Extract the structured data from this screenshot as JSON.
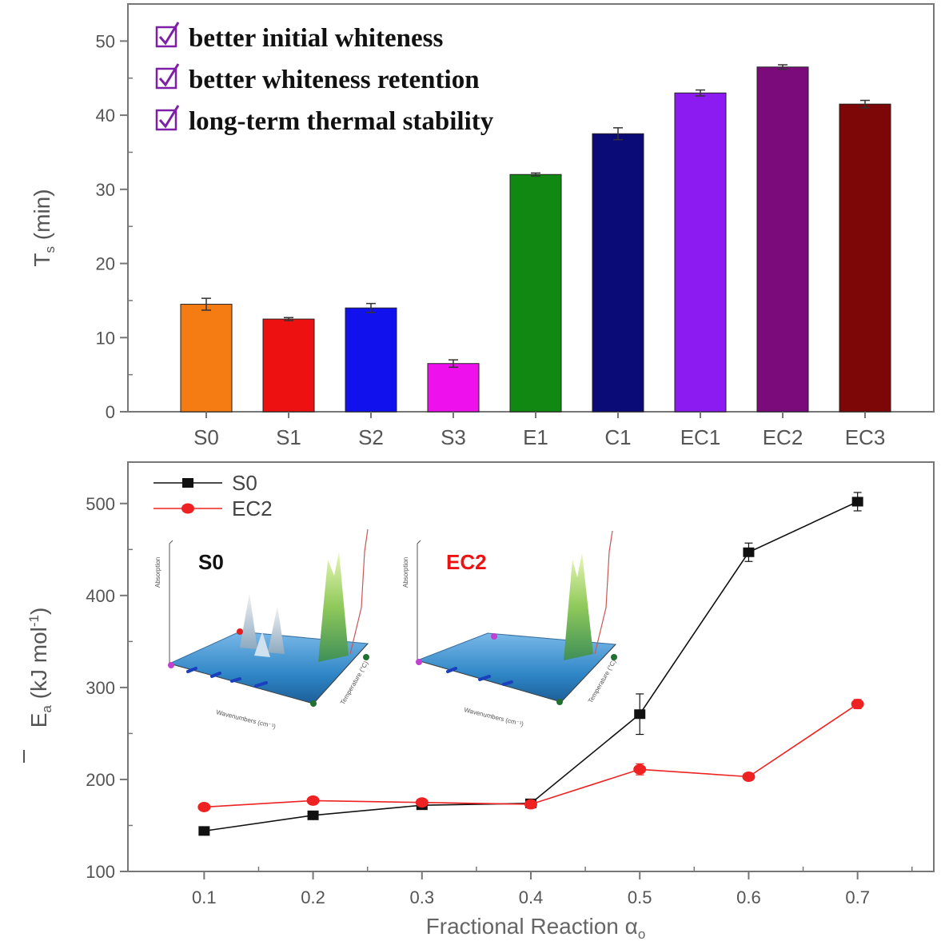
{
  "chart_data": [
    {
      "type": "bar",
      "title": "",
      "xlabel": "",
      "ylabel": "T",
      "ylabel_sub": "s",
      "ylabel_unit": " (min)",
      "ylim": [
        0,
        55
      ],
      "yticks": [
        0,
        10,
        20,
        30,
        40,
        50
      ],
      "categories": [
        "S0",
        "S1",
        "S2",
        "S3",
        "E1",
        "C1",
        "EC1",
        "EC2",
        "EC3"
      ],
      "values": [
        14.5,
        12.5,
        14.0,
        6.5,
        32.0,
        37.5,
        43.0,
        46.5,
        41.5
      ],
      "errors": [
        0.8,
        0.2,
        0.6,
        0.5,
        0.2,
        0.8,
        0.4,
        0.3,
        0.5
      ],
      "colors": [
        "#f57c12",
        "#ee1111",
        "#1111ee",
        "#ee11ee",
        "#118811",
        "#0b0b78",
        "#8b1bf0",
        "#7b0b7b",
        "#7d0707"
      ],
      "annotations": [
        "better initial whiteness",
        "better whiteness retention",
        "long-term thermal stability"
      ],
      "annotation_color": "#7e1fa8"
    },
    {
      "type": "line",
      "title": "",
      "xlabel": "Fractional Reaction α",
      "xlabel_sub": "o",
      "ylabel": "E",
      "ylabel_sub": "a",
      "ylabel_unit": " (kJ mol",
      "ylabel_sup": "-1",
      "ylabel_close": ")",
      "xlim": [
        0.03,
        0.77
      ],
      "ylim": [
        100,
        545
      ],
      "xticks": [
        0.1,
        0.2,
        0.3,
        0.4,
        0.5,
        0.6,
        0.7
      ],
      "xtick_labels": [
        "0.1",
        "0.2",
        "0.3",
        "0.4",
        "0.5",
        "0.6",
        "0.7"
      ],
      "yticks": [
        100,
        200,
        300,
        400,
        500
      ],
      "legend": "top-left",
      "x": [
        0.1,
        0.2,
        0.3,
        0.4,
        0.5,
        0.6,
        0.7
      ],
      "series": [
        {
          "name": "S0",
          "color": "#111111",
          "marker": "square",
          "values": [
            144,
            161,
            172,
            174,
            271,
            447,
            502
          ],
          "errors": [
            3,
            3,
            3,
            3,
            22,
            10,
            10
          ]
        },
        {
          "name": "EC2",
          "color": "#ee2222",
          "marker": "circle",
          "values": [
            170,
            177,
            175,
            173,
            211,
            203,
            282
          ],
          "errors": [
            3,
            3,
            3,
            3,
            6,
            3,
            5
          ]
        }
      ],
      "insets": [
        {
          "label": "S0",
          "label_color": "#111111",
          "y_axis": "Absorption",
          "x_axis": "Wavenumbers (cm⁻¹)",
          "z_axis": "Temperature (°C)"
        },
        {
          "label": "EC2",
          "label_color": "#ee1111",
          "y_axis": "Absorption",
          "x_axis": "Wavenumbers (cm⁻¹)",
          "z_axis": "Temperature (°C)"
        }
      ]
    }
  ]
}
